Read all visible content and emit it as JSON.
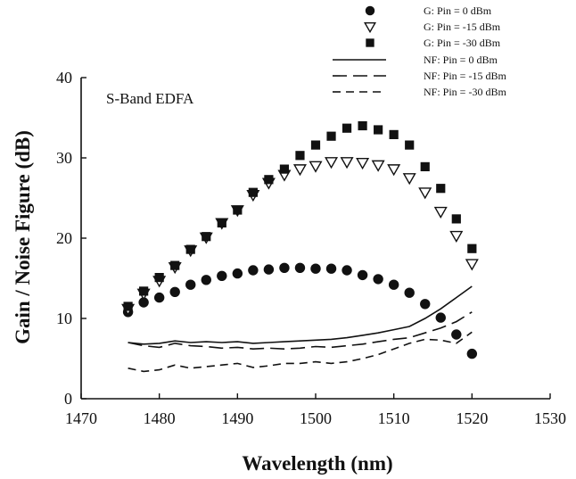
{
  "chart_data": {
    "type": "scatter",
    "annotation": "S-Band EDFA",
    "xlabel": "Wavelength (nm)",
    "ylabel": "Gain / Noise Figure (dB)",
    "xlim": [
      1470,
      1530
    ],
    "ylim": [
      0,
      40
    ],
    "xticks": [
      "1470",
      "1480",
      "1490",
      "1500",
      "1510",
      "1520",
      "1530"
    ],
    "yticks": [
      "0",
      "10",
      "20",
      "30",
      "40"
    ],
    "grid": false,
    "legend_position": "top-right",
    "series": [
      {
        "name": "G: Pin = 0 dBm",
        "kind": "points",
        "marker": "circle",
        "x": [
          1476,
          1478,
          1480,
          1482,
          1484,
          1486,
          1488,
          1490,
          1492,
          1494,
          1496,
          1498,
          1500,
          1502,
          1504,
          1506,
          1508,
          1510,
          1512,
          1514,
          1516,
          1518,
          1520
        ],
        "y": [
          10.8,
          12.0,
          12.6,
          13.3,
          14.2,
          14.8,
          15.3,
          15.6,
          16.0,
          16.1,
          16.3,
          16.3,
          16.2,
          16.2,
          16.0,
          15.4,
          14.9,
          14.2,
          13.2,
          11.8,
          10.1,
          8.0,
          5.6
        ]
      },
      {
        "name": "G: Pin = -15 dBm",
        "kind": "points",
        "marker": "triangle-down",
        "x": [
          1476,
          1478,
          1480,
          1482,
          1484,
          1486,
          1488,
          1490,
          1492,
          1494,
          1496,
          1498,
          1500,
          1502,
          1504,
          1506,
          1508,
          1510,
          1512,
          1514,
          1516,
          1518,
          1520
        ],
        "y": [
          11.2,
          13.1,
          14.7,
          16.4,
          18.5,
          20.1,
          21.9,
          23.5,
          25.4,
          26.9,
          27.9,
          28.6,
          29.0,
          29.5,
          29.5,
          29.4,
          29.1,
          28.6,
          27.5,
          25.7,
          23.3,
          20.3,
          16.8
        ]
      },
      {
        "name": "G: Pin = -30 dBm",
        "kind": "points",
        "marker": "square",
        "x": [
          1476,
          1478,
          1480,
          1482,
          1484,
          1486,
          1488,
          1490,
          1492,
          1494,
          1496,
          1498,
          1500,
          1502,
          1504,
          1506,
          1508,
          1510,
          1512,
          1514,
          1516,
          1518,
          1520
        ],
        "y": [
          11.5,
          13.4,
          15.1,
          16.6,
          18.6,
          20.2,
          21.9,
          23.5,
          25.7,
          27.3,
          28.6,
          30.3,
          31.6,
          32.7,
          33.7,
          34.0,
          33.5,
          32.9,
          31.6,
          28.9,
          26.2,
          22.4,
          18.7
        ]
      },
      {
        "name": "NF: Pin = 0 dBm",
        "kind": "line",
        "dash": "solid",
        "x": [
          1476,
          1478,
          1480,
          1482,
          1484,
          1486,
          1488,
          1490,
          1492,
          1494,
          1496,
          1498,
          1500,
          1502,
          1504,
          1506,
          1508,
          1510,
          1512,
          1514,
          1516,
          1518,
          1520
        ],
        "y": [
          7.0,
          6.8,
          6.9,
          7.2,
          7.0,
          7.1,
          7.0,
          7.1,
          6.9,
          7.0,
          7.1,
          7.2,
          7.3,
          7.4,
          7.6,
          7.9,
          8.2,
          8.6,
          9.0,
          10.0,
          11.2,
          12.6,
          14.0
        ]
      },
      {
        "name": "NF: Pin = -15 dBm",
        "kind": "line",
        "dash": "long-dash",
        "x": [
          1476,
          1478,
          1480,
          1482,
          1484,
          1486,
          1488,
          1490,
          1492,
          1494,
          1496,
          1498,
          1500,
          1502,
          1504,
          1506,
          1508,
          1510,
          1512,
          1514,
          1516,
          1518,
          1520
        ],
        "y": [
          7.0,
          6.6,
          6.4,
          6.9,
          6.6,
          6.5,
          6.3,
          6.4,
          6.2,
          6.3,
          6.2,
          6.3,
          6.5,
          6.4,
          6.6,
          6.8,
          7.1,
          7.4,
          7.6,
          8.2,
          8.8,
          9.6,
          10.8
        ]
      },
      {
        "name": "NF: Pin = -30 dBm",
        "kind": "line",
        "dash": "short-dash",
        "x": [
          1476,
          1478,
          1480,
          1482,
          1484,
          1486,
          1488,
          1490,
          1492,
          1494,
          1496,
          1498,
          1500,
          1502,
          1504,
          1506,
          1508,
          1510,
          1512,
          1514,
          1516,
          1518,
          1520
        ],
        "y": [
          3.8,
          3.4,
          3.6,
          4.2,
          3.8,
          4.0,
          4.2,
          4.4,
          3.9,
          4.1,
          4.4,
          4.4,
          4.6,
          4.4,
          4.6,
          5.0,
          5.5,
          6.2,
          6.9,
          7.4,
          7.3,
          6.9,
          8.3
        ]
      }
    ]
  }
}
